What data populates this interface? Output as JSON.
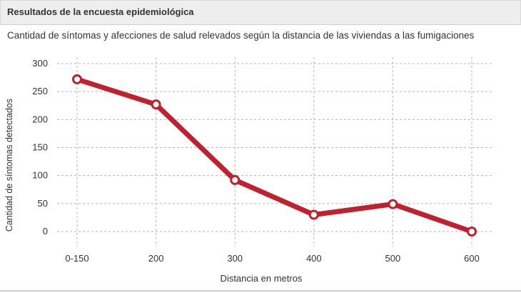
{
  "panel": {
    "title": "Resultados de la encuesta epidemiológica"
  },
  "chart_data": {
    "type": "line",
    "title": "Cantidad de síntomas y afecciones de salud relevados según la distancia de las viviendas a las fumigaciones",
    "xlabel": "Distancia en metros",
    "ylabel": "Cantidad de síntomas detectados",
    "categories": [
      "0-150",
      "200",
      "300",
      "400",
      "500",
      "600"
    ],
    "series": [
      {
        "values": [
          272,
          227,
          92,
          30,
          49,
          0
        ]
      }
    ],
    "ylim": [
      0,
      300
    ],
    "yticks": [
      0,
      50,
      100,
      150,
      200,
      250,
      300
    ],
    "grid": true,
    "line_color": "#c0212e"
  }
}
